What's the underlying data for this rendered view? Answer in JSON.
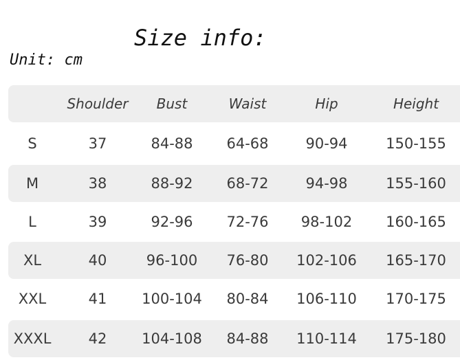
{
  "title": "Size info:",
  "unit": "Unit: cm",
  "table": {
    "headers": [
      "",
      "Shoulder",
      "Bust",
      "Waist",
      "Hip",
      "Height"
    ],
    "rows": [
      [
        "S",
        "37",
        "84-88",
        "64-68",
        "90-94",
        "150-155"
      ],
      [
        "M",
        "38",
        "88-92",
        "68-72",
        "94-98",
        "155-160"
      ],
      [
        "L",
        "39",
        "92-96",
        "72-76",
        "98-102",
        "160-165"
      ],
      [
        "XL",
        "40",
        "96-100",
        "76-80",
        "102-106",
        "165-170"
      ],
      [
        "XXL",
        "41",
        "100-104",
        "80-84",
        "106-110",
        "170-175"
      ],
      [
        "XXXL",
        "42",
        "104-108",
        "84-88",
        "110-114",
        "175-180"
      ]
    ]
  },
  "colors": {
    "stripe": "#eeeeee",
    "text": "#3a3a3a"
  }
}
